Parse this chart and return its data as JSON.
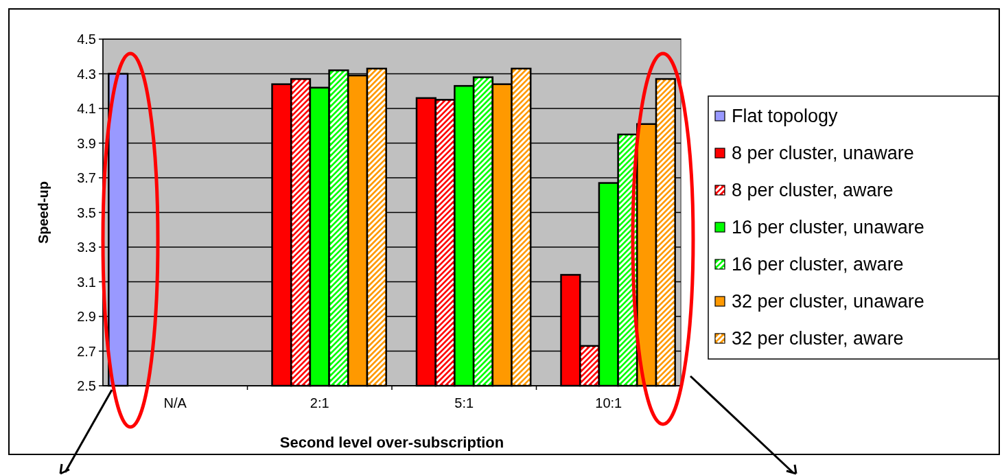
{
  "chart_data": {
    "type": "bar",
    "xlabel": "Second level over-subscription",
    "ylabel": "Speed-up",
    "categories": [
      "N/A",
      "2:1",
      "5:1",
      "10:1"
    ],
    "series": [
      {
        "name": "Flat topology",
        "color": "#9999ff",
        "values": [
          4.3,
          null,
          null,
          null
        ]
      },
      {
        "name": "8 per cluster, unaware",
        "color": "#ff0000",
        "values": [
          null,
          4.24,
          4.16,
          3.14
        ]
      },
      {
        "name": "8 per cluster, aware",
        "color": "#ff0000",
        "values": [
          null,
          4.27,
          4.15,
          2.73
        ]
      },
      {
        "name": "16 per cluster, unaware",
        "color": "#00ff00",
        "values": [
          null,
          4.22,
          4.23,
          3.67
        ]
      },
      {
        "name": "16 per cluster, aware",
        "color": "#00ff00",
        "values": [
          null,
          4.32,
          4.28,
          3.95
        ]
      },
      {
        "name": "32 per cluster, unaware",
        "color": "#ff9900",
        "values": [
          null,
          4.29,
          4.24,
          4.01
        ]
      },
      {
        "name": "32 per cluster, aware",
        "color": "#ff9900",
        "values": [
          null,
          4.33,
          4.33,
          4.27
        ]
      }
    ],
    "ylim": [
      2.5,
      4.5
    ],
    "yticks": [
      2.5,
      2.7,
      2.9,
      3.1,
      3.3,
      3.5,
      3.7,
      3.9,
      4.1,
      4.3,
      4.5
    ],
    "grid": "y",
    "legend": "right"
  }
}
